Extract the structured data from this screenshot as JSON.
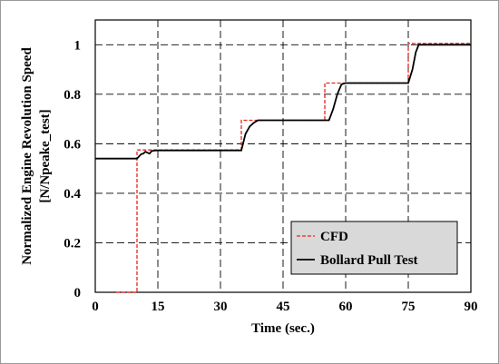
{
  "chart_data": {
    "type": "line",
    "xlabel": "Time (sec.)",
    "ylabel_line1": "Normalized Engine Revolution Speed",
    "ylabel_line2": "[N/Npeake_test]",
    "xlim": [
      0,
      90
    ],
    "ylim": [
      0,
      1.1
    ],
    "xticks": [
      "0",
      "15",
      "30",
      "45",
      "60",
      "75",
      "90"
    ],
    "xtick_values": [
      0,
      15,
      30,
      45,
      60,
      75,
      90
    ],
    "yticks": [
      "0",
      "0.2",
      "0.4",
      "0.6",
      "0.8",
      "1"
    ],
    "ytick_values": [
      0,
      0.2,
      0.4,
      0.6,
      0.8,
      1.0
    ],
    "grid": true,
    "legend_position": "bottom-right",
    "series": [
      {
        "name": "CFD",
        "color": "#e8241f",
        "style": "dashed",
        "x": [
          5,
          10,
          10,
          35,
          35,
          38,
          38,
          55,
          55,
          75,
          75,
          90
        ],
        "y": [
          0,
          0,
          0.575,
          0.575,
          0.695,
          0.695,
          0.695,
          0.695,
          0.845,
          0.845,
          1.005,
          1.005
        ]
      },
      {
        "name": "Bollard Pull Test",
        "color": "#000000",
        "style": "solid",
        "x": [
          0,
          10,
          11,
          11.5,
          12,
          13,
          13.5,
          14,
          14.5,
          15,
          35,
          36,
          37,
          38,
          39,
          56,
          57,
          58,
          59,
          60,
          75,
          76,
          76.8,
          77.5,
          90
        ],
        "y": [
          0.54,
          0.54,
          0.558,
          0.56,
          0.568,
          0.56,
          0.57,
          0.572,
          0.573,
          0.573,
          0.573,
          0.64,
          0.67,
          0.685,
          0.695,
          0.695,
          0.74,
          0.8,
          0.84,
          0.845,
          0.845,
          0.9,
          0.97,
          1.0,
          1.0
        ]
      }
    ]
  }
}
